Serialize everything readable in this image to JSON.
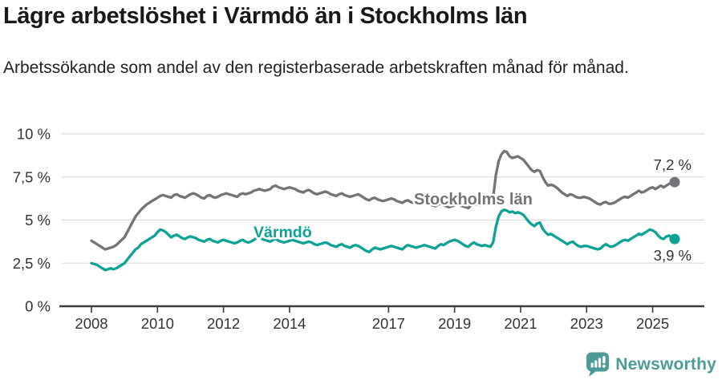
{
  "header": {
    "title": "Lägre arbetslöshet i Värmdö än i Stockholms län",
    "subtitle": "Arbetssökande som andel av den registerbaserade arbetskraften månad för månad."
  },
  "footer": {
    "brand": "Newsworthy",
    "brand_color": "#4d9b98",
    "logo_icon": "newsworthy-chart-bubble-icon"
  },
  "chart_data": {
    "type": "line",
    "unit": "%",
    "frequency": "monthly",
    "x_start": "2008-01",
    "x_end": "2025-09",
    "ylim": [
      0,
      10
    ],
    "grid": true,
    "legend": "inline-labels",
    "colors": {
      "stockholm_line": "#747478",
      "varmdo_line": "#0ca295",
      "gridline": "#dbdbdb",
      "axis": "#3a3a3a",
      "axis_text": "#333333",
      "end_label_text": "#333333"
    },
    "y_ticks": [
      {
        "value": 10,
        "label": "10 %"
      },
      {
        "value": 7.5,
        "label": "7,5 %"
      },
      {
        "value": 5,
        "label": "5 %"
      },
      {
        "value": 2.5,
        "label": "2,5 %"
      },
      {
        "value": 0,
        "label": "0 %"
      }
    ],
    "x_ticks": [
      {
        "year": 2008,
        "label": "2008"
      },
      {
        "year": 2010,
        "label": "2010"
      },
      {
        "year": 2012,
        "label": "2012"
      },
      {
        "year": 2014,
        "label": "2014"
      },
      {
        "year": 2017,
        "label": "2017"
      },
      {
        "year": 2019,
        "label": "2019"
      },
      {
        "year": 2021,
        "label": "2021"
      },
      {
        "year": 2023,
        "label": "2023"
      },
      {
        "year": 2025,
        "label": "2025"
      }
    ],
    "series": [
      {
        "name": "Stockholms län",
        "color": "#747478",
        "end_label": "7,2 %",
        "last_value": 7.2,
        "values": [
          3.8,
          3.7,
          3.6,
          3.5,
          3.4,
          3.3,
          3.35,
          3.4,
          3.45,
          3.55,
          3.7,
          3.85,
          4.0,
          4.3,
          4.6,
          4.9,
          5.2,
          5.4,
          5.6,
          5.75,
          5.9,
          6.0,
          6.1,
          6.2,
          6.3,
          6.4,
          6.45,
          6.4,
          6.35,
          6.3,
          6.45,
          6.5,
          6.4,
          6.35,
          6.3,
          6.4,
          6.5,
          6.55,
          6.5,
          6.4,
          6.3,
          6.25,
          6.4,
          6.45,
          6.35,
          6.3,
          6.35,
          6.45,
          6.5,
          6.55,
          6.5,
          6.45,
          6.4,
          6.35,
          6.5,
          6.55,
          6.5,
          6.55,
          6.6,
          6.7,
          6.75,
          6.8,
          6.75,
          6.7,
          6.75,
          6.8,
          6.95,
          7.0,
          6.9,
          6.85,
          6.8,
          6.85,
          6.9,
          6.85,
          6.8,
          6.7,
          6.65,
          6.6,
          6.7,
          6.75,
          6.65,
          6.55,
          6.5,
          6.55,
          6.6,
          6.65,
          6.6,
          6.5,
          6.45,
          6.4,
          6.5,
          6.55,
          6.45,
          6.4,
          6.35,
          6.4,
          6.45,
          6.5,
          6.4,
          6.3,
          6.2,
          6.15,
          6.25,
          6.3,
          6.2,
          6.15,
          6.1,
          6.15,
          6.2,
          6.25,
          6.2,
          6.1,
          6.05,
          6.0,
          6.1,
          6.15,
          6.05,
          6.0,
          5.95,
          6.0,
          6.05,
          6.0,
          5.95,
          5.9,
          5.85,
          5.8,
          5.9,
          5.95,
          5.85,
          5.8,
          5.75,
          5.8,
          5.85,
          5.9,
          5.85,
          5.8,
          5.75,
          5.7,
          5.85,
          5.95,
          5.9,
          5.85,
          5.9,
          5.95,
          6.0,
          5.95,
          6.3,
          7.6,
          8.4,
          8.8,
          9.0,
          8.95,
          8.7,
          8.6,
          8.65,
          8.7,
          8.6,
          8.5,
          8.3,
          8.1,
          7.9,
          7.8,
          7.9,
          7.85,
          7.5,
          7.2,
          7.0,
          7.05,
          7.0,
          6.9,
          6.75,
          6.6,
          6.5,
          6.4,
          6.5,
          6.45,
          6.35,
          6.3,
          6.3,
          6.35,
          6.3,
          6.25,
          6.15,
          6.05,
          5.95,
          5.9,
          6.0,
          6.05,
          5.95,
          5.95,
          6.0,
          6.1,
          6.2,
          6.3,
          6.35,
          6.3,
          6.4,
          6.5,
          6.6,
          6.7,
          6.6,
          6.65,
          6.75,
          6.85,
          6.9,
          6.8,
          6.9,
          7.0,
          6.9,
          7.0,
          7.1,
          7.15,
          7.2
        ]
      },
      {
        "name": "Värmdö",
        "color": "#0ca295",
        "end_label": "3,9 %",
        "last_value": 3.9,
        "values": [
          2.5,
          2.45,
          2.4,
          2.3,
          2.2,
          2.1,
          2.15,
          2.2,
          2.15,
          2.2,
          2.3,
          2.4,
          2.5,
          2.7,
          2.9,
          3.1,
          3.3,
          3.4,
          3.6,
          3.7,
          3.8,
          3.9,
          4.0,
          4.1,
          4.3,
          4.45,
          4.4,
          4.3,
          4.15,
          4.0,
          4.1,
          4.15,
          4.05,
          3.95,
          3.9,
          4.0,
          4.05,
          4.0,
          3.95,
          3.85,
          3.8,
          3.75,
          3.85,
          3.9,
          3.8,
          3.75,
          3.7,
          3.8,
          3.85,
          3.8,
          3.75,
          3.7,
          3.65,
          3.7,
          3.8,
          3.85,
          3.75,
          3.7,
          3.75,
          3.85,
          3.95,
          4.0,
          3.9,
          3.85,
          3.8,
          3.75,
          3.85,
          3.9,
          3.8,
          3.75,
          3.7,
          3.75,
          3.8,
          3.85,
          3.8,
          3.75,
          3.7,
          3.65,
          3.7,
          3.75,
          3.7,
          3.6,
          3.55,
          3.6,
          3.65,
          3.7,
          3.65,
          3.55,
          3.5,
          3.45,
          3.55,
          3.6,
          3.5,
          3.45,
          3.4,
          3.5,
          3.55,
          3.5,
          3.4,
          3.3,
          3.2,
          3.15,
          3.3,
          3.4,
          3.35,
          3.3,
          3.35,
          3.4,
          3.45,
          3.5,
          3.45,
          3.4,
          3.35,
          3.3,
          3.45,
          3.55,
          3.5,
          3.45,
          3.4,
          3.45,
          3.5,
          3.55,
          3.5,
          3.45,
          3.4,
          3.35,
          3.5,
          3.6,
          3.55,
          3.65,
          3.75,
          3.8,
          3.85,
          3.8,
          3.7,
          3.6,
          3.5,
          3.45,
          3.6,
          3.7,
          3.6,
          3.55,
          3.5,
          3.55,
          3.5,
          3.45,
          3.7,
          4.6,
          5.2,
          5.5,
          5.6,
          5.55,
          5.45,
          5.5,
          5.4,
          5.45,
          5.4,
          5.3,
          5.1,
          4.9,
          4.75,
          4.65,
          4.8,
          4.85,
          4.5,
          4.3,
          4.15,
          4.2,
          4.1,
          4.0,
          3.9,
          3.8,
          3.7,
          3.6,
          3.7,
          3.75,
          3.6,
          3.5,
          3.45,
          3.5,
          3.5,
          3.45,
          3.4,
          3.35,
          3.3,
          3.35,
          3.5,
          3.6,
          3.5,
          3.45,
          3.5,
          3.6,
          3.7,
          3.8,
          3.85,
          3.8,
          3.9,
          4.0,
          4.1,
          4.2,
          4.15,
          4.25,
          4.35,
          4.45,
          4.4,
          4.3,
          4.1,
          3.95,
          3.9,
          4.05,
          4.1,
          3.95,
          3.9
        ]
      }
    ]
  }
}
